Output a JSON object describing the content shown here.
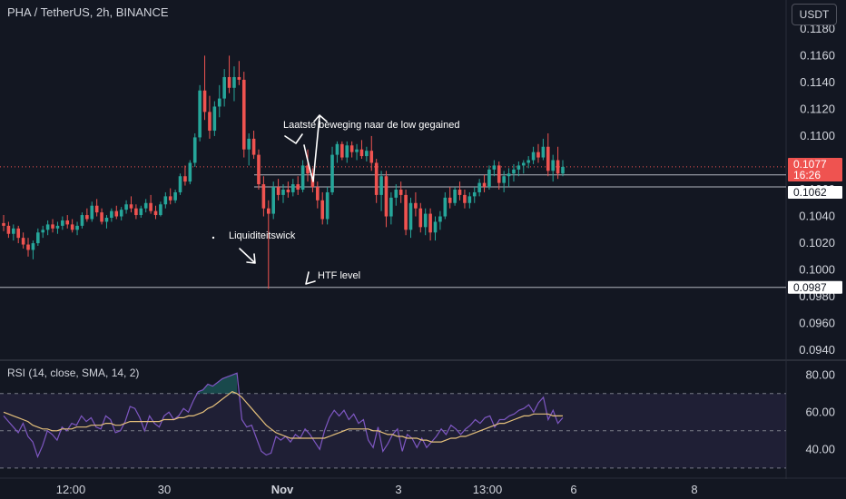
{
  "header": {
    "symbol_text": "PHA / TetherUS, 2h, BINANCE",
    "currency_button": "USDT"
  },
  "colors": {
    "background": "#131722",
    "up": "#26a69a",
    "down": "#ef5350",
    "grid": "#2a2e39",
    "rsi_line": "#7e57c2",
    "rsi_ma": "#e5c07b",
    "text": "#d1d4dc",
    "annotation": "#ffffff"
  },
  "chart_data": [
    {
      "type": "candlestick",
      "title": "PHA / TetherUS, 2h, BINANCE",
      "x_tick_labels": [
        "12:00",
        "30",
        "Nov",
        "3",
        "13:00",
        "6",
        "8"
      ],
      "y_tick_labels": [
        "0.1180",
        "0.1160",
        "0.1140",
        "0.1120",
        "0.1100",
        "0.1080",
        "0.1060",
        "0.1040",
        "0.1020",
        "0.1000",
        "0.0980",
        "0.0960",
        "0.0940"
      ],
      "ylim": [
        0.0932,
        0.1188
      ],
      "candles_ohlc": [
        [
          0.1035,
          0.1041,
          0.1029,
          0.1033
        ],
        [
          0.1033,
          0.1036,
          0.1024,
          0.1027
        ],
        [
          0.1027,
          0.1034,
          0.1022,
          0.1031
        ],
        [
          0.1031,
          0.1033,
          0.102,
          0.1024
        ],
        [
          0.1024,
          0.1028,
          0.1016,
          0.1019
        ],
        [
          0.1019,
          0.1024,
          0.101,
          0.1015
        ],
        [
          0.1015,
          0.1022,
          0.1008,
          0.102
        ],
        [
          0.102,
          0.1031,
          0.1018,
          0.1028
        ],
        [
          0.1028,
          0.1033,
          0.1024,
          0.103
        ],
        [
          0.103,
          0.1037,
          0.1026,
          0.1034
        ],
        [
          0.1034,
          0.1038,
          0.1028,
          0.1031
        ],
        [
          0.1031,
          0.1036,
          0.1027,
          0.1033
        ],
        [
          0.1033,
          0.104,
          0.103,
          0.1037
        ],
        [
          0.1037,
          0.1041,
          0.1031,
          0.1034
        ],
        [
          0.1034,
          0.1038,
          0.1028,
          0.103
        ],
        [
          0.103,
          0.1036,
          0.1026,
          0.1033
        ],
        [
          0.1033,
          0.1043,
          0.1031,
          0.1041
        ],
        [
          0.1041,
          0.1046,
          0.1036,
          0.1038
        ],
        [
          0.1038,
          0.1051,
          0.1036,
          0.1048
        ],
        [
          0.1048,
          0.1053,
          0.104,
          0.1043
        ],
        [
          0.1043,
          0.1046,
          0.1034,
          0.1036
        ],
        [
          0.1036,
          0.1041,
          0.1031,
          0.1039
        ],
        [
          0.1039,
          0.1046,
          0.1036,
          0.1044
        ],
        [
          0.1044,
          0.1048,
          0.1038,
          0.104
        ],
        [
          0.104,
          0.1047,
          0.1037,
          0.1045
        ],
        [
          0.1045,
          0.1052,
          0.1042,
          0.1049
        ],
        [
          0.1049,
          0.1055,
          0.1043,
          0.1046
        ],
        [
          0.1046,
          0.1049,
          0.1038,
          0.1041
        ],
        [
          0.1041,
          0.1048,
          0.1039,
          0.1046
        ],
        [
          0.1046,
          0.1053,
          0.1043,
          0.105
        ],
        [
          0.105,
          0.1056,
          0.1042,
          0.1044
        ],
        [
          0.1044,
          0.1048,
          0.1038,
          0.1041
        ],
        [
          0.1041,
          0.1051,
          0.104,
          0.1049
        ],
        [
          0.1049,
          0.1058,
          0.1046,
          0.1055
        ],
        [
          0.1055,
          0.1061,
          0.1049,
          0.1052
        ],
        [
          0.1052,
          0.106,
          0.105,
          0.1058
        ],
        [
          0.1058,
          0.1072,
          0.1056,
          0.107
        ],
        [
          0.107,
          0.1078,
          0.1063,
          0.1066
        ],
        [
          0.1066,
          0.1082,
          0.1064,
          0.108
        ],
        [
          0.108,
          0.1102,
          0.1077,
          0.1099
        ],
        [
          0.1099,
          0.1138,
          0.1096,
          0.1134
        ],
        [
          0.1134,
          0.116,
          0.1112,
          0.1118
        ],
        [
          0.1118,
          0.113,
          0.1098,
          0.1104
        ],
        [
          0.1104,
          0.1126,
          0.11,
          0.1122
        ],
        [
          0.1122,
          0.1138,
          0.1114,
          0.1128
        ],
        [
          0.1128,
          0.115,
          0.1122,
          0.1144
        ],
        [
          0.1144,
          0.116,
          0.1132,
          0.1136
        ],
        [
          0.1136,
          0.1152,
          0.1126,
          0.1144
        ],
        [
          0.1144,
          0.1156,
          0.1138,
          0.1142
        ],
        [
          0.1142,
          0.1148,
          0.1084,
          0.109
        ],
        [
          0.109,
          0.1102,
          0.1078,
          0.1098
        ],
        [
          0.1098,
          0.1104,
          0.1083,
          0.1086
        ],
        [
          0.1086,
          0.109,
          0.106,
          0.1064
        ],
        [
          0.1064,
          0.107,
          0.104,
          0.1046
        ],
        [
          0.1046,
          0.1052,
          0.0986,
          0.1042
        ],
        [
          0.1042,
          0.1066,
          0.1038,
          0.1062
        ],
        [
          0.1062,
          0.1068,
          0.1052,
          0.1056
        ],
        [
          0.1056,
          0.1064,
          0.105,
          0.106
        ],
        [
          0.106,
          0.1066,
          0.1054,
          0.1058
        ],
        [
          0.1058,
          0.1068,
          0.1055,
          0.1064
        ],
        [
          0.1064,
          0.107,
          0.1056,
          0.106
        ],
        [
          0.106,
          0.1082,
          0.1058,
          0.1078
        ],
        [
          0.1078,
          0.109,
          0.1066,
          0.1072
        ],
        [
          0.1072,
          0.1076,
          0.1058,
          0.1062
        ],
        [
          0.1062,
          0.1066,
          0.1046,
          0.1052
        ],
        [
          0.1052,
          0.1058,
          0.1034,
          0.1038
        ],
        [
          0.1038,
          0.1062,
          0.1034,
          0.1058
        ],
        [
          0.1058,
          0.1092,
          0.1056,
          0.1086
        ],
        [
          0.1086,
          0.1096,
          0.108,
          0.1094
        ],
        [
          0.1094,
          0.1096,
          0.1082,
          0.1084
        ],
        [
          0.1084,
          0.1096,
          0.108,
          0.1093
        ],
        [
          0.1093,
          0.1096,
          0.1084,
          0.1088
        ],
        [
          0.1088,
          0.1094,
          0.1082,
          0.109
        ],
        [
          0.109,
          0.1097,
          0.1083,
          0.1085
        ],
        [
          0.1085,
          0.1092,
          0.1081,
          0.1089
        ],
        [
          0.1089,
          0.11,
          0.1074,
          0.108
        ],
        [
          0.108,
          0.1083,
          0.105,
          0.1056
        ],
        [
          0.1056,
          0.1074,
          0.1044,
          0.107
        ],
        [
          0.107,
          0.1074,
          0.1032,
          0.104
        ],
        [
          0.104,
          0.1058,
          0.1034,
          0.1054
        ],
        [
          0.1054,
          0.1064,
          0.1048,
          0.106
        ],
        [
          0.106,
          0.1066,
          0.105,
          0.1056
        ],
        [
          0.1056,
          0.106,
          0.1026,
          0.103
        ],
        [
          0.103,
          0.1054,
          0.1024,
          0.105
        ],
        [
          0.105,
          0.1058,
          0.104,
          0.1046
        ],
        [
          0.1046,
          0.105,
          0.1028,
          0.1032
        ],
        [
          0.1032,
          0.1046,
          0.1026,
          0.1042
        ],
        [
          0.1042,
          0.1046,
          0.1022,
          0.1028
        ],
        [
          0.1028,
          0.104,
          0.1022,
          0.1036
        ],
        [
          0.1036,
          0.1044,
          0.103,
          0.104
        ],
        [
          0.104,
          0.1058,
          0.1038,
          0.1054
        ],
        [
          0.1054,
          0.1062,
          0.1046,
          0.105
        ],
        [
          0.105,
          0.1062,
          0.1048,
          0.106
        ],
        [
          0.106,
          0.1066,
          0.1052,
          0.1056
        ],
        [
          0.1056,
          0.106,
          0.1046,
          0.105
        ],
        [
          0.105,
          0.1058,
          0.1046,
          0.1055
        ],
        [
          0.1055,
          0.1062,
          0.105,
          0.1058
        ],
        [
          0.1058,
          0.1068,
          0.1055,
          0.1065
        ],
        [
          0.1065,
          0.1071,
          0.1058,
          0.1062
        ],
        [
          0.1062,
          0.1078,
          0.106,
          0.1075
        ],
        [
          0.1075,
          0.1082,
          0.107,
          0.1078
        ],
        [
          0.1078,
          0.1081,
          0.106,
          0.1065
        ],
        [
          0.1065,
          0.1074,
          0.1058,
          0.107
        ],
        [
          0.107,
          0.1076,
          0.1062,
          0.1072
        ],
        [
          0.1072,
          0.1079,
          0.1066,
          0.1075
        ],
        [
          0.1075,
          0.1081,
          0.107,
          0.1078
        ],
        [
          0.1078,
          0.1082,
          0.1072,
          0.108
        ],
        [
          0.108,
          0.1085,
          0.1076,
          0.1082
        ],
        [
          0.1082,
          0.1092,
          0.1079,
          0.1088
        ],
        [
          0.1088,
          0.1094,
          0.108,
          0.1084
        ],
        [
          0.1084,
          0.1098,
          0.1082,
          0.1092
        ],
        [
          0.1092,
          0.1102,
          0.107,
          0.1074
        ],
        [
          0.1074,
          0.1086,
          0.1066,
          0.1082
        ],
        [
          0.1082,
          0.1092,
          0.1068,
          0.1072
        ],
        [
          0.1072,
          0.1082,
          0.107,
          0.1077
        ]
      ],
      "horizontal_lines": [
        {
          "value": 0.1071,
          "label": "0.1071"
        },
        {
          "value": 0.1062,
          "label": "0.1062"
        },
        {
          "value": 0.0987,
          "label": "0.0987"
        }
      ],
      "last_price": {
        "value": 0.1077,
        "label": "0.1077",
        "countdown": "16:26"
      },
      "annotations": [
        {
          "text": "Laatste beweging naar de low gegained"
        },
        {
          "text": "Liquiditeitswick"
        },
        {
          "text": "HTF level"
        }
      ]
    },
    {
      "type": "line",
      "title": "RSI (14, close, SMA, 14, 2)",
      "y_tick_labels": [
        "80.00",
        "60.00",
        "40.00"
      ],
      "ylim": [
        27,
        85
      ],
      "levels": [
        70,
        50,
        30
      ],
      "series": [
        {
          "name": "RSI",
          "values": [
            58,
            55,
            52,
            49,
            54,
            47,
            44,
            36,
            42,
            50,
            48,
            45,
            52,
            50,
            54,
            53,
            58,
            55,
            57,
            52,
            51,
            58,
            56,
            49,
            50,
            55,
            63,
            62,
            57,
            50,
            58,
            54,
            52,
            58,
            60,
            56,
            58,
            62,
            60,
            66,
            71,
            72,
            75,
            74,
            76,
            78,
            79,
            80,
            81,
            56,
            52,
            53,
            46,
            39,
            37,
            38,
            47,
            45,
            47,
            44,
            48,
            46,
            51,
            48,
            44,
            40,
            50,
            57,
            61,
            58,
            61,
            56,
            59,
            54,
            56,
            45,
            41,
            52,
            39,
            43,
            48,
            51,
            39,
            48,
            46,
            41,
            46,
            41,
            44,
            47,
            51,
            48,
            53,
            51,
            48,
            51,
            53,
            56,
            54,
            57,
            58,
            52,
            56,
            56,
            58,
            59,
            61,
            62,
            64,
            60,
            65,
            68,
            56,
            61,
            54,
            57
          ]
        },
        {
          "name": "SMA",
          "values": [
            60,
            59,
            58,
            57,
            56,
            55,
            53,
            52,
            51,
            51,
            50,
            50,
            51,
            51,
            51,
            52,
            52,
            52,
            53,
            53,
            53,
            54,
            54,
            53,
            53,
            54,
            55,
            55,
            55,
            55,
            55,
            55,
            55,
            56,
            56,
            56,
            57,
            57,
            58,
            58,
            59,
            60,
            62,
            63,
            65,
            67,
            69,
            71,
            70,
            68,
            65,
            62,
            59,
            56,
            53,
            51,
            49,
            48,
            47,
            46,
            46,
            46,
            46,
            46,
            46,
            46,
            46,
            47,
            48,
            49,
            50,
            51,
            51,
            51,
            51,
            51,
            50,
            50,
            49,
            48,
            48,
            47,
            47,
            46,
            46,
            46,
            45,
            45,
            44,
            44,
            44,
            45,
            46,
            46,
            47,
            47,
            48,
            49,
            50,
            51,
            52,
            53,
            54,
            54,
            55,
            56,
            57,
            58,
            58,
            59,
            59,
            59,
            59,
            58,
            58,
            58
          ]
        }
      ]
    }
  ],
  "annotation_texts": {
    "a1": "Laatste beweging naar de low gegained",
    "a2": "Liquiditeitswick",
    "a3": "HTF level"
  }
}
